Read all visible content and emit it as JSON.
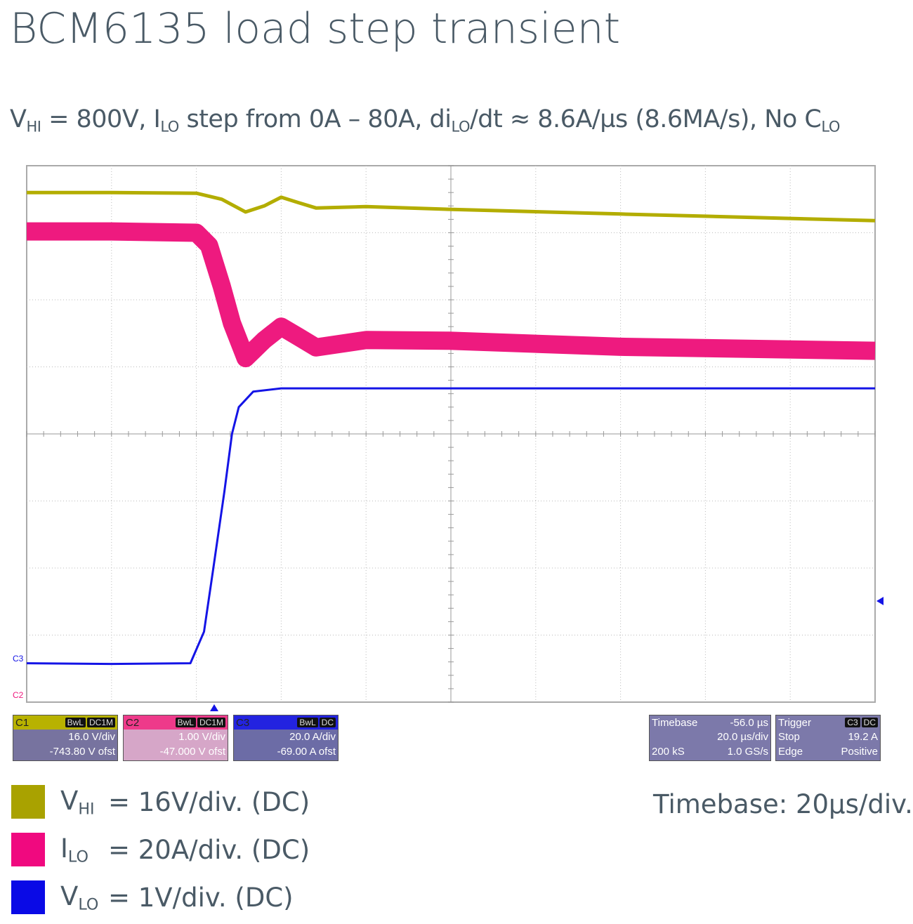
{
  "title": "BCM6135 load step transient",
  "subtitle": [
    {
      "text": "V"
    },
    {
      "text": "HI",
      "sub": true
    },
    {
      "text": " = 800V, I"
    },
    {
      "text": "LO",
      "sub": true
    },
    {
      "text": " step from 0A – 80A, di"
    },
    {
      "text": "LO",
      "sub": true
    },
    {
      "text": "/dt ≈ 8.6A/µs (8.6MA/s), No C"
    },
    {
      "text": "LO",
      "sub": true
    }
  ],
  "chart_data": {
    "type": "line",
    "xlim": [
      0,
      10
    ],
    "ylim": [
      0,
      8
    ],
    "grid": true,
    "series": [
      {
        "color": "#b3ad00",
        "width": 5,
        "x": [
          0,
          1.0,
          2.0,
          2.3,
          2.58,
          2.8,
          3.0,
          3.2,
          3.41,
          4.0,
          4.98,
          7.0,
          10
        ],
        "values": [
          7.6,
          7.6,
          7.59,
          7.5,
          7.31,
          7.4,
          7.53,
          7.45,
          7.37,
          7.39,
          7.35,
          7.28,
          7.18
        ]
      },
      {
        "color": "#ee1a7f",
        "width": 26,
        "x": [
          0,
          1.0,
          2.0,
          2.15,
          2.3,
          2.42,
          2.58,
          2.8,
          3.0,
          3.2,
          3.41,
          4.0,
          4.98,
          7.0,
          10
        ],
        "values": [
          7.02,
          7.02,
          7.0,
          6.81,
          6.2,
          5.65,
          5.13,
          5.4,
          5.6,
          5.45,
          5.29,
          5.4,
          5.39,
          5.3,
          5.24
        ]
      },
      {
        "color": "#1414e6",
        "width": 3,
        "x": [
          0,
          1.0,
          1.93,
          2.09,
          2.2,
          2.33,
          2.42,
          2.5,
          2.67,
          3.0,
          5.0,
          10
        ],
        "values": [
          0.58,
          0.57,
          0.58,
          1.05,
          2.0,
          3.14,
          4.0,
          4.4,
          4.63,
          4.68,
          4.68,
          4.68
        ]
      }
    ]
  },
  "trace_markers": [
    "C3",
    "C2"
  ],
  "scope_panels": [
    {
      "title": "C1",
      "tags": [
        "BwL",
        "DC1M"
      ],
      "rows": [
        [
          "16.0 V/div"
        ],
        [
          "-743.80 V ofst"
        ]
      ],
      "head": "#b8b200",
      "body": "#77739f"
    },
    {
      "title": "C2",
      "tags": [
        "BwL",
        "DC1M"
      ],
      "rows": [
        [
          "1.00 V/div"
        ],
        [
          "-47.000 V ofst"
        ]
      ],
      "head": "#ee3a8a",
      "body": "#d6a6c8"
    },
    {
      "title": "C3",
      "tags": [
        "BwL",
        "DC"
      ],
      "rows": [
        [
          "20.0 A/div"
        ],
        [
          "-69.00 A ofst"
        ]
      ],
      "head": "#2323e0",
      "body": "#6c6ca6"
    },
    {
      "title": "Timebase",
      "value": "-56.0 µs",
      "rows": [
        [
          "20.0 µs/div"
        ],
        [
          "200 kS",
          "1.0 GS/s"
        ]
      ],
      "head": "#7c79aa",
      "body": "#7c79aa"
    },
    {
      "title": "Trigger",
      "tags": [
        "C3",
        "DC"
      ],
      "rows": [
        [
          "Stop",
          "19.2 A"
        ],
        [
          "Edge",
          "Positive"
        ]
      ],
      "head": "#7c79aa",
      "body": "#7c79aa"
    }
  ],
  "legend": [
    {
      "color": "#a9a200",
      "symbol": "V",
      "sub": "HI",
      "text": "=  16V/div. (DC)"
    },
    {
      "color": "#f0097f",
      "symbol": "I",
      "sub": "LO",
      "text": "=  20A/div. (DC)"
    },
    {
      "color": "#0a0ae6",
      "symbol": "V",
      "sub": "LO",
      "text": "=  1V/div. (DC)"
    }
  ],
  "timebase_note": "Timebase: 20µs/div."
}
